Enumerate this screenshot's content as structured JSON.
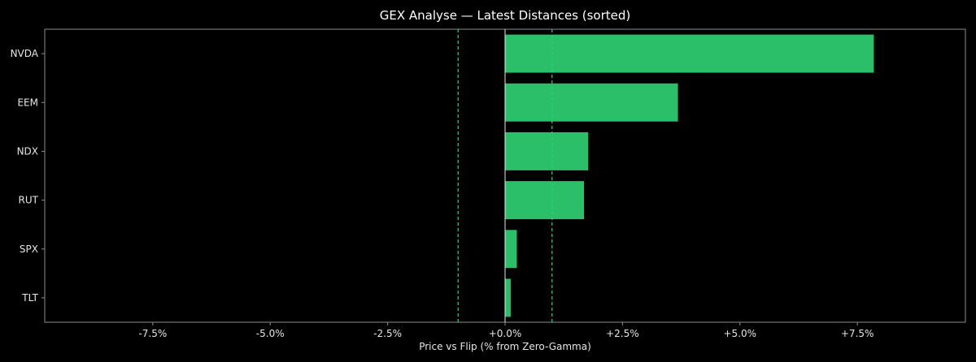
{
  "chart_data": {
    "type": "bar",
    "orientation": "horizontal",
    "title": "GEX Analyse — Latest Distances (sorted)",
    "xlabel": "Price vs Flip (% from Zero-Gamma)",
    "ylabel": "",
    "categories": [
      "NVDA",
      "EEM",
      "NDX",
      "RUT",
      "SPX",
      "TLT"
    ],
    "values": [
      7.85,
      3.68,
      1.77,
      1.68,
      0.25,
      0.12
    ],
    "xlim": [
      -9.8,
      9.8
    ],
    "xticks": [
      -7.5,
      -5.0,
      -2.5,
      0.0,
      2.5,
      5.0,
      7.5
    ],
    "xtick_labels": [
      "-7.5%",
      "-5.0%",
      "-2.5%",
      "+0.0%",
      "+2.5%",
      "+5.0%",
      "+7.5%"
    ],
    "reference_lines": [
      -1.0,
      1.0
    ],
    "zero_line": 0,
    "grid": false,
    "colors": {
      "bar": "#2bbf6a",
      "reference_line": "#2bd36f",
      "zero_line": "#e6e6e6",
      "frame": "#8c8c8c",
      "background": "#000000",
      "text": "#e6e6e6"
    }
  }
}
